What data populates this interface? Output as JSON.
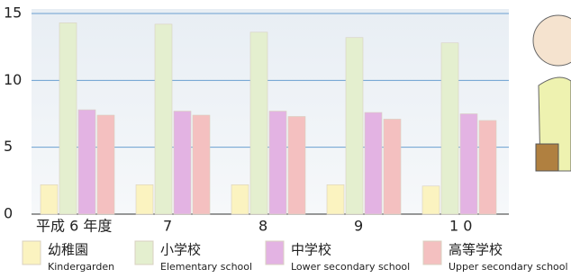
{
  "chart_data": {
    "type": "bar",
    "categories": [
      "平成 6 年度",
      "7",
      "8",
      "9",
      "1 0"
    ],
    "series": [
      {
        "name": "幼稚園",
        "name_en": "Kindergarden",
        "color": "#fbf3c0",
        "values": [
          2.2,
          2.2,
          2.2,
          2.2,
          2.1
        ]
      },
      {
        "name": "小学校",
        "name_en": "Elementary school",
        "color": "#e4efcf",
        "values": [
          14.3,
          14.2,
          13.6,
          13.2,
          12.8
        ]
      },
      {
        "name": "中学校",
        "name_en": "Lower secondary school",
        "color": "#e3b3e3",
        "values": [
          7.8,
          7.7,
          7.7,
          7.6,
          7.5
        ]
      },
      {
        "name": "高等学校",
        "name_en": "Upper secondary school",
        "color": "#f4c0c0",
        "values": [
          7.4,
          7.4,
          7.3,
          7.1,
          7.0
        ]
      }
    ],
    "ylim": [
      0,
      15
    ],
    "yticks": [
      0,
      5,
      10,
      15
    ],
    "grid": true
  }
}
